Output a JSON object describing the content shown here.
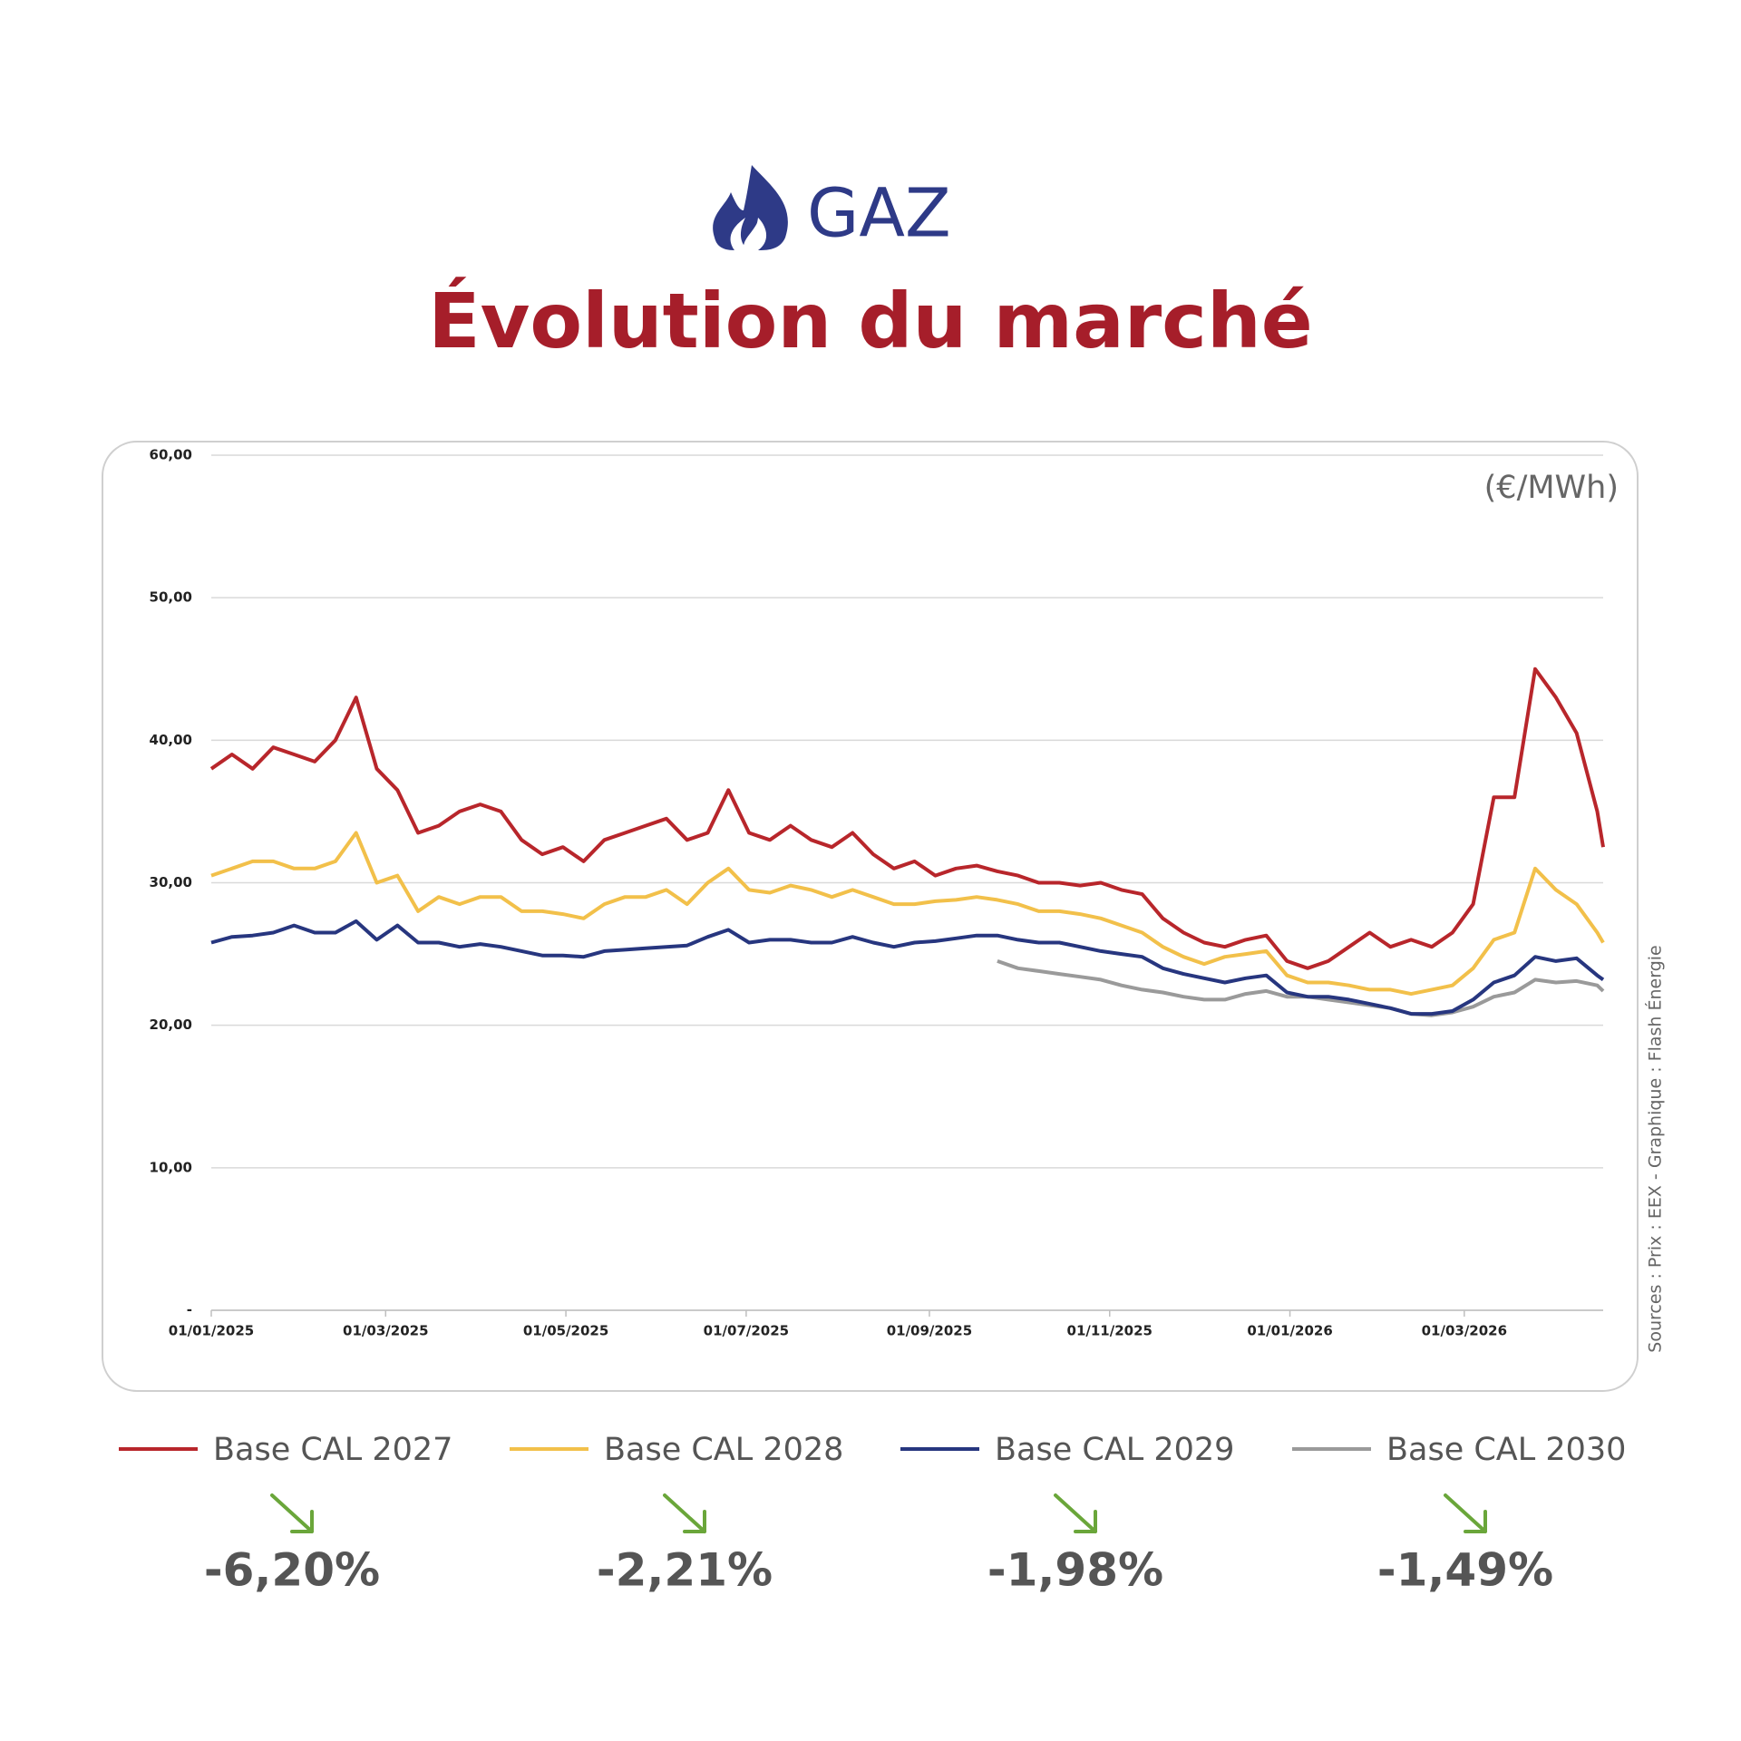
{
  "header": {
    "label": "GAZ"
  },
  "chart_data": {
    "type": "line",
    "title": "Évolution du marché",
    "unit": "(€/MWh)",
    "source": "Sources : Prix : EEX - Graphique : Flash Énergie",
    "x": [
      "2025-01-01",
      "2025-01-08",
      "2025-01-15",
      "2025-01-22",
      "2025-01-29",
      "2025-02-05",
      "2025-02-12",
      "2025-02-19",
      "2025-02-26",
      "2025-03-05",
      "2025-03-12",
      "2025-03-19",
      "2025-03-26",
      "2025-04-02",
      "2025-04-09",
      "2025-04-16",
      "2025-04-23",
      "2025-04-30",
      "2025-05-07",
      "2025-05-14",
      "2025-05-21",
      "2025-05-28",
      "2025-06-04",
      "2025-06-11",
      "2025-06-18",
      "2025-06-25",
      "2025-07-02",
      "2025-07-09",
      "2025-07-16",
      "2025-07-23",
      "2025-07-30",
      "2025-08-06",
      "2025-08-13",
      "2025-08-20",
      "2025-08-27",
      "2025-09-03",
      "2025-09-10",
      "2025-09-17",
      "2025-09-24",
      "2025-10-01",
      "2025-10-08",
      "2025-10-15",
      "2025-10-22",
      "2025-10-29",
      "2025-11-05",
      "2025-11-12",
      "2025-11-19",
      "2025-11-26",
      "2025-12-03",
      "2025-12-10",
      "2025-12-17",
      "2025-12-24",
      "2025-12-31",
      "2026-01-07",
      "2026-01-14",
      "2026-01-21",
      "2026-01-28",
      "2026-02-04",
      "2026-02-11",
      "2026-02-18",
      "2026-02-25",
      "2026-03-04",
      "2026-03-11",
      "2026-03-18",
      "2026-03-25",
      "2026-04-01",
      "2026-04-08",
      "2026-04-15",
      "2026-04-17"
    ],
    "xlim": [
      "2025-01-01",
      "2026-04-17"
    ],
    "xticks": [
      {
        "value": "2025-01-01",
        "label": "01/01/2025"
      },
      {
        "value": "2025-03-01",
        "label": "01/03/2025"
      },
      {
        "value": "2025-05-01",
        "label": "01/05/2025"
      },
      {
        "value": "2025-07-01",
        "label": "01/07/2025"
      },
      {
        "value": "2025-09-01",
        "label": "01/09/2025"
      },
      {
        "value": "2025-11-01",
        "label": "01/11/2025"
      },
      {
        "value": "2026-01-01",
        "label": "01/01/2026"
      },
      {
        "value": "2026-03-01",
        "label": "01/03/2026"
      }
    ],
    "ylim": [
      0,
      60
    ],
    "yticks": [
      {
        "value": 0,
        "label": "-"
      },
      {
        "value": 10,
        "label": "10,00"
      },
      {
        "value": 20,
        "label": "20,00"
      },
      {
        "value": 30,
        "label": "30,00"
      },
      {
        "value": 40,
        "label": "40,00"
      },
      {
        "value": 50,
        "label": "50,00"
      },
      {
        "value": 60,
        "label": "60,00"
      }
    ],
    "grid": true,
    "series": [
      {
        "name": "Base CAL 2027",
        "color": "#b8262b",
        "change": -6.2,
        "change_label": "-6,20%",
        "values": [
          38,
          39,
          38,
          39.5,
          39,
          38.5,
          40,
          43,
          38,
          36.5,
          33.5,
          34,
          35,
          35.5,
          35,
          33,
          32,
          32.5,
          31.5,
          33,
          33.5,
          34,
          34.5,
          33,
          33.5,
          36.5,
          33.5,
          33,
          34,
          33,
          32.5,
          33.5,
          32,
          31,
          31.5,
          30.5,
          31,
          31.2,
          30.8,
          30.5,
          30,
          30,
          29.8,
          30,
          29.5,
          29.2,
          27.5,
          26.5,
          25.8,
          25.5,
          26,
          26.3,
          24.5,
          24,
          24.5,
          25.5,
          26.5,
          25.5,
          26,
          25.5,
          26.5,
          28.5,
          36,
          36,
          45,
          43,
          40.5,
          35,
          32.5
        ]
      },
      {
        "name": "Base CAL 2028",
        "color": "#f2c04a",
        "change": -2.21,
        "change_label": "-2,21%",
        "values": [
          30.5,
          31,
          31.5,
          31.5,
          31,
          31,
          31.5,
          33.5,
          30,
          30.5,
          28,
          29,
          28.5,
          29,
          29,
          28,
          28,
          27.8,
          27.5,
          28.5,
          29,
          29,
          29.5,
          28.5,
          30,
          31,
          29.5,
          29.3,
          29.8,
          29.5,
          29,
          29.5,
          29,
          28.5,
          28.5,
          28.7,
          28.8,
          29,
          28.8,
          28.5,
          28,
          28,
          27.8,
          27.5,
          27,
          26.5,
          25.5,
          24.8,
          24.3,
          24.8,
          25,
          25.2,
          23.5,
          23,
          23,
          22.8,
          22.5,
          22.5,
          22.2,
          22.5,
          22.8,
          24,
          26,
          26.5,
          31,
          29.5,
          28.5,
          26.5,
          25.8
        ]
      },
      {
        "name": "Base CAL 2029",
        "color": "#27367f",
        "change": -1.98,
        "change_label": "-1,98%",
        "values": [
          25.8,
          26.2,
          26.3,
          26.5,
          27,
          26.5,
          26.5,
          27.3,
          26,
          27,
          25.8,
          25.8,
          25.5,
          25.7,
          25.5,
          25.2,
          24.9,
          24.9,
          24.8,
          25.2,
          25.3,
          25.4,
          25.5,
          25.6,
          26.2,
          26.7,
          25.8,
          26,
          26,
          25.8,
          25.8,
          26.2,
          25.8,
          25.5,
          25.8,
          25.9,
          26.1,
          26.3,
          26.3,
          26,
          25.8,
          25.8,
          25.5,
          25.2,
          25,
          24.8,
          24,
          23.6,
          23.3,
          23,
          23.3,
          23.5,
          22.3,
          22,
          22,
          21.8,
          21.5,
          21.2,
          20.8,
          20.8,
          21,
          21.8,
          23,
          23.5,
          24.8,
          24.5,
          24.7,
          23.5,
          23.2
        ]
      },
      {
        "name": "Base CAL 2030",
        "color": "#9a9a9a",
        "change": -1.49,
        "change_label": "-1,49%",
        "values": [
          null,
          null,
          null,
          null,
          null,
          null,
          null,
          null,
          null,
          null,
          null,
          null,
          null,
          null,
          null,
          null,
          null,
          null,
          null,
          null,
          null,
          null,
          null,
          null,
          null,
          null,
          null,
          null,
          null,
          null,
          null,
          null,
          null,
          null,
          null,
          null,
          null,
          null,
          24.5,
          24,
          23.8,
          23.6,
          23.4,
          23.2,
          22.8,
          22.5,
          22.3,
          22,
          21.8,
          21.8,
          22.2,
          22.4,
          22,
          22,
          21.8,
          21.6,
          21.4,
          21.2,
          20.8,
          20.7,
          20.9,
          21.3,
          22,
          22.3,
          23.2,
          23,
          23.1,
          22.8,
          22.4
        ]
      }
    ]
  }
}
